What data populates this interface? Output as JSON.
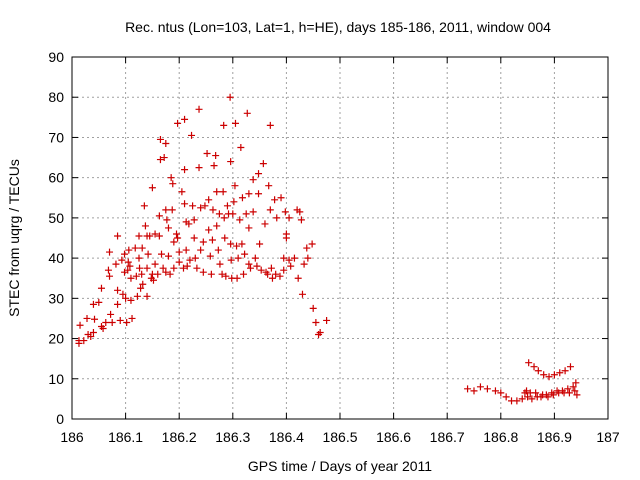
{
  "chart_data": {
    "type": "scatter",
    "title": "Rec. ntus (Lon=103, Lat=1, h=HE), days 185-186, 2011, window 004",
    "xlabel": "GPS time / Days of year 2011",
    "ylabel": "STEC from uqrg / TECUs",
    "xlim": [
      186,
      187
    ],
    "ylim": [
      0,
      90
    ],
    "xticks": [
      186,
      186.1,
      186.2,
      186.3,
      186.4,
      186.5,
      186.6,
      186.7,
      186.8,
      186.9,
      187
    ],
    "xtick_labels": [
      "186",
      "186.1",
      "186.2",
      "186.3",
      "186.4",
      "186.5",
      "186.6",
      "186.7",
      "186.8",
      "186.9",
      "187"
    ],
    "yticks": [
      0,
      10,
      20,
      30,
      40,
      50,
      60,
      70,
      80,
      90
    ],
    "ytick_labels": [
      "0",
      "10",
      "20",
      "30",
      "40",
      "50",
      "60",
      "70",
      "80",
      "90"
    ],
    "grid": true,
    "marker": "+",
    "color": "#cc0000",
    "points": [
      [
        186.013,
        19.5
      ],
      [
        186.013,
        18.8
      ],
      [
        186.015,
        23.3
      ],
      [
        186.022,
        19.5
      ],
      [
        186.028,
        25.0
      ],
      [
        186.03,
        21.0
      ],
      [
        186.035,
        20.5
      ],
      [
        186.04,
        28.5
      ],
      [
        186.04,
        21.5
      ],
      [
        186.042,
        24.8
      ],
      [
        186.05,
        29.0
      ],
      [
        186.055,
        32.5
      ],
      [
        186.055,
        23.0
      ],
      [
        186.058,
        22.5
      ],
      [
        186.063,
        24.0
      ],
      [
        186.068,
        37.0
      ],
      [
        186.07,
        35.5
      ],
      [
        186.07,
        41.5
      ],
      [
        186.072,
        26.0
      ],
      [
        186.075,
        24.0
      ],
      [
        186.082,
        38.5
      ],
      [
        186.085,
        45.5
      ],
      [
        186.085,
        32.0
      ],
      [
        186.085,
        28.5
      ],
      [
        186.09,
        24.5
      ],
      [
        186.093,
        39.5
      ],
      [
        186.095,
        31.0
      ],
      [
        186.098,
        41.0
      ],
      [
        186.098,
        36.5
      ],
      [
        186.1,
        30.0
      ],
      [
        186.102,
        24.0
      ],
      [
        186.104,
        37.0
      ],
      [
        186.105,
        39.0
      ],
      [
        186.106,
        42.0
      ],
      [
        186.108,
        38.0
      ],
      [
        186.11,
        35.0
      ],
      [
        186.11,
        29.5
      ],
      [
        186.112,
        25.0
      ],
      [
        186.118,
        42.5
      ],
      [
        186.12,
        35.5
      ],
      [
        186.122,
        30.5
      ],
      [
        186.125,
        45.5
      ],
      [
        186.125,
        40.0
      ],
      [
        186.126,
        37.5
      ],
      [
        186.128,
        32.5
      ],
      [
        186.13,
        36.0
      ],
      [
        186.131,
        42.5
      ],
      [
        186.132,
        33.5
      ],
      [
        186.135,
        53.0
      ],
      [
        186.137,
        48.0
      ],
      [
        186.14,
        45.5
      ],
      [
        186.14,
        37.5
      ],
      [
        186.14,
        30.5
      ],
      [
        186.142,
        41.0
      ],
      [
        186.145,
        45.5
      ],
      [
        186.148,
        35.0
      ],
      [
        186.15,
        57.5
      ],
      [
        186.15,
        36.0
      ],
      [
        186.152,
        34.5
      ],
      [
        186.155,
        46.0
      ],
      [
        186.155,
        38.5
      ],
      [
        186.16,
        36.0
      ],
      [
        186.163,
        45.5
      ],
      [
        186.163,
        50.5
      ],
      [
        186.165,
        69.5
      ],
      [
        186.165,
        64.5
      ],
      [
        186.167,
        41.0
      ],
      [
        186.17,
        37.5
      ],
      [
        186.172,
        65.0
      ],
      [
        186.175,
        68.5
      ],
      [
        186.175,
        52.0
      ],
      [
        186.175,
        36.5
      ],
      [
        186.177,
        49.5
      ],
      [
        186.18,
        47.5
      ],
      [
        186.18,
        40.5
      ],
      [
        186.183,
        36.0
      ],
      [
        186.185,
        60.0
      ],
      [
        186.187,
        52.0
      ],
      [
        186.188,
        58.5
      ],
      [
        186.19,
        37.5
      ],
      [
        186.19,
        44.0
      ],
      [
        186.195,
        46.0
      ],
      [
        186.197,
        73.5
      ],
      [
        186.197,
        45.0
      ],
      [
        186.2,
        41.5
      ],
      [
        186.2,
        39.0
      ],
      [
        186.205,
        56.5
      ],
      [
        186.208,
        37.5
      ],
      [
        186.21,
        74.5
      ],
      [
        186.21,
        62.0
      ],
      [
        186.21,
        53.5
      ],
      [
        186.213,
        49.0
      ],
      [
        186.213,
        42.0
      ],
      [
        186.215,
        38.0
      ],
      [
        186.218,
        48.5
      ],
      [
        186.22,
        39.5
      ],
      [
        186.223,
        70.5
      ],
      [
        186.225,
        53.0
      ],
      [
        186.228,
        49.5
      ],
      [
        186.228,
        45.0
      ],
      [
        186.23,
        40.0
      ],
      [
        186.233,
        37.5
      ],
      [
        186.237,
        77.0
      ],
      [
        186.237,
        62.5
      ],
      [
        186.24,
        52.5
      ],
      [
        186.24,
        42.0
      ],
      [
        186.245,
        36.5
      ],
      [
        186.245,
        44.0
      ],
      [
        186.248,
        53.0
      ],
      [
        186.252,
        66.0
      ],
      [
        186.255,
        54.5
      ],
      [
        186.255,
        47.0
      ],
      [
        186.258,
        40.5
      ],
      [
        186.26,
        36.0
      ],
      [
        186.262,
        44.5
      ],
      [
        186.263,
        52.0
      ],
      [
        186.265,
        63.0
      ],
      [
        186.268,
        65.5
      ],
      [
        186.27,
        56.5
      ],
      [
        186.27,
        48.0
      ],
      [
        186.273,
        42.0
      ],
      [
        186.275,
        51.0
      ],
      [
        186.276,
        38.5
      ],
      [
        186.28,
        36.0
      ],
      [
        186.282,
        56.5
      ],
      [
        186.283,
        73.0
      ],
      [
        186.284,
        50.0
      ],
      [
        186.285,
        45.0
      ],
      [
        186.287,
        35.5
      ],
      [
        186.29,
        53.0
      ],
      [
        186.292,
        51.0
      ],
      [
        186.295,
        80.0
      ],
      [
        186.296,
        64.0
      ],
      [
        186.296,
        43.5
      ],
      [
        186.297,
        39.5
      ],
      [
        186.298,
        35.0
      ],
      [
        186.3,
        51.0
      ],
      [
        186.302,
        54.0
      ],
      [
        186.304,
        58.0
      ],
      [
        186.305,
        73.5
      ],
      [
        186.307,
        43.0
      ],
      [
        186.308,
        35.0
      ],
      [
        186.31,
        40.0
      ],
      [
        186.313,
        49.5
      ],
      [
        186.315,
        67.5
      ],
      [
        186.317,
        43.5
      ],
      [
        186.318,
        55.0
      ],
      [
        186.32,
        36.0
      ],
      [
        186.322,
        41.0
      ],
      [
        186.325,
        51.0
      ],
      [
        186.327,
        76.0
      ],
      [
        186.33,
        56.0
      ],
      [
        186.33,
        47.5
      ],
      [
        186.33,
        38.5
      ],
      [
        186.333,
        37.5
      ],
      [
        186.338,
        59.5
      ],
      [
        186.338,
        51.5
      ],
      [
        186.342,
        40.0
      ],
      [
        186.345,
        38.0
      ],
      [
        186.348,
        61.0
      ],
      [
        186.348,
        56.0
      ],
      [
        186.35,
        43.5
      ],
      [
        186.353,
        37.0
      ],
      [
        186.357,
        63.5
      ],
      [
        186.36,
        48.5
      ],
      [
        186.362,
        36.5
      ],
      [
        186.365,
        36.0
      ],
      [
        186.367,
        58.0
      ],
      [
        186.37,
        73.0
      ],
      [
        186.37,
        52.0
      ],
      [
        186.372,
        37.5
      ],
      [
        186.374,
        35.0
      ],
      [
        186.378,
        54.5
      ],
      [
        186.38,
        36.0
      ],
      [
        186.382,
        50.0
      ],
      [
        186.388,
        35.5
      ],
      [
        186.39,
        55.0
      ],
      [
        186.395,
        37.0
      ],
      [
        186.395,
        40.0
      ],
      [
        186.398,
        51.5
      ],
      [
        186.4,
        46.0
      ],
      [
        186.4,
        45.0
      ],
      [
        186.405,
        39.5
      ],
      [
        186.405,
        50.0
      ],
      [
        186.408,
        38.0
      ],
      [
        186.415,
        40.0
      ],
      [
        186.42,
        52.0
      ],
      [
        186.422,
        35.0
      ],
      [
        186.425,
        51.5
      ],
      [
        186.428,
        49.5
      ],
      [
        186.43,
        31.0
      ],
      [
        186.433,
        38.5
      ],
      [
        186.438,
        42.5
      ],
      [
        186.44,
        40.0
      ],
      [
        186.448,
        43.5
      ],
      [
        186.45,
        27.5
      ],
      [
        186.455,
        24.0
      ],
      [
        186.46,
        21.0
      ],
      [
        186.463,
        21.5
      ],
      [
        186.475,
        24.5
      ],
      [
        186.738,
        7.5
      ],
      [
        186.75,
        7.0
      ],
      [
        186.762,
        8.0
      ],
      [
        186.775,
        7.5
      ],
      [
        186.79,
        7.0
      ],
      [
        186.8,
        6.5
      ],
      [
        186.81,
        5.5
      ],
      [
        186.82,
        4.5
      ],
      [
        186.83,
        4.5
      ],
      [
        186.84,
        5.0
      ],
      [
        186.845,
        6.5
      ],
      [
        186.848,
        7.0
      ],
      [
        186.85,
        5.5
      ],
      [
        186.852,
        14.0
      ],
      [
        186.855,
        6.5
      ],
      [
        186.858,
        5.0
      ],
      [
        186.862,
        13.0
      ],
      [
        186.865,
        6.5
      ],
      [
        186.868,
        5.5
      ],
      [
        186.87,
        12.0
      ],
      [
        186.875,
        5.5
      ],
      [
        186.878,
        6.0
      ],
      [
        186.88,
        11.0
      ],
      [
        186.885,
        6.0
      ],
      [
        186.888,
        5.5
      ],
      [
        186.89,
        10.5
      ],
      [
        186.895,
        6.5
      ],
      [
        186.898,
        6.0
      ],
      [
        186.9,
        11.0
      ],
      [
        186.905,
        7.0
      ],
      [
        186.908,
        6.5
      ],
      [
        186.91,
        11.5
      ],
      [
        186.915,
        7.0
      ],
      [
        186.918,
        6.5
      ],
      [
        186.92,
        12.0
      ],
      [
        186.925,
        7.5
      ],
      [
        186.928,
        6.5
      ],
      [
        186.93,
        13.0
      ],
      [
        186.935,
        8.0
      ],
      [
        186.938,
        7.0
      ],
      [
        186.94,
        9.0
      ],
      [
        186.942,
        6.0
      ]
    ]
  }
}
